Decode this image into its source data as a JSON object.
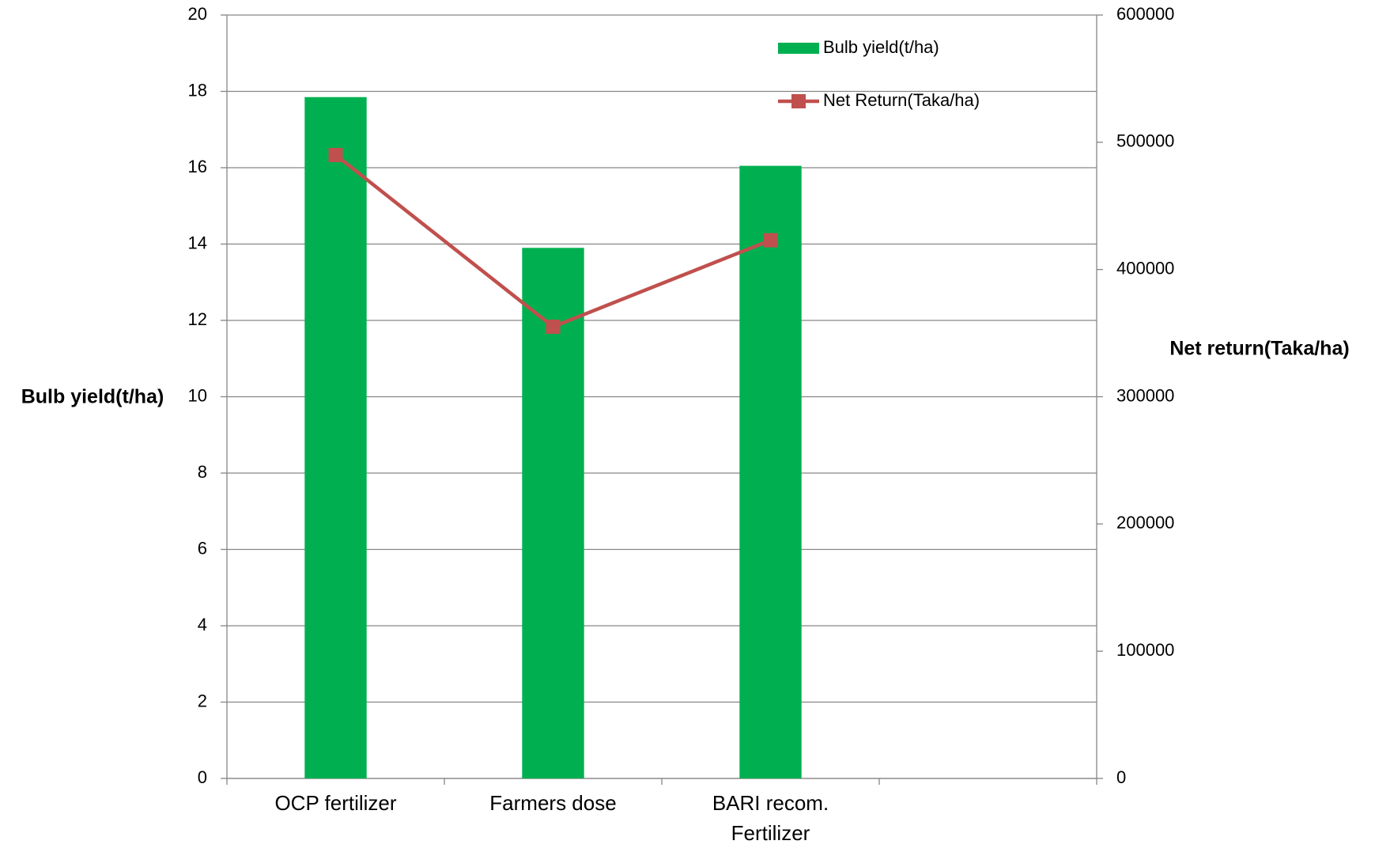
{
  "chart_data": {
    "type": "bar",
    "categories": [
      "OCP fertilizer",
      "Farmers dose",
      "BARI recom. Fertilizer",
      null
    ],
    "series": [
      {
        "name": "Bulb yield(t/ha)",
        "type": "bar",
        "color": "#00b050",
        "values": [
          17.85,
          13.9,
          16.05,
          null
        ]
      },
      {
        "name": "Net Return(Taka/ha)",
        "type": "line",
        "axis": "y2",
        "color": "#c0504d",
        "values": [
          490000,
          355000,
          423000,
          null
        ]
      }
    ],
    "y_label": "Bulb yield(t/ha)",
    "y2_label": "Net return(Taka/ha)",
    "ylim": [
      0,
      20
    ],
    "yticks": [
      0,
      2,
      4,
      6,
      8,
      10,
      12,
      14,
      16,
      18,
      20
    ],
    "y2lim": [
      0,
      600000
    ],
    "y2ticks": [
      0,
      100000,
      200000,
      300000,
      400000,
      500000,
      600000
    ],
    "grid": true,
    "legend": "top-right"
  }
}
